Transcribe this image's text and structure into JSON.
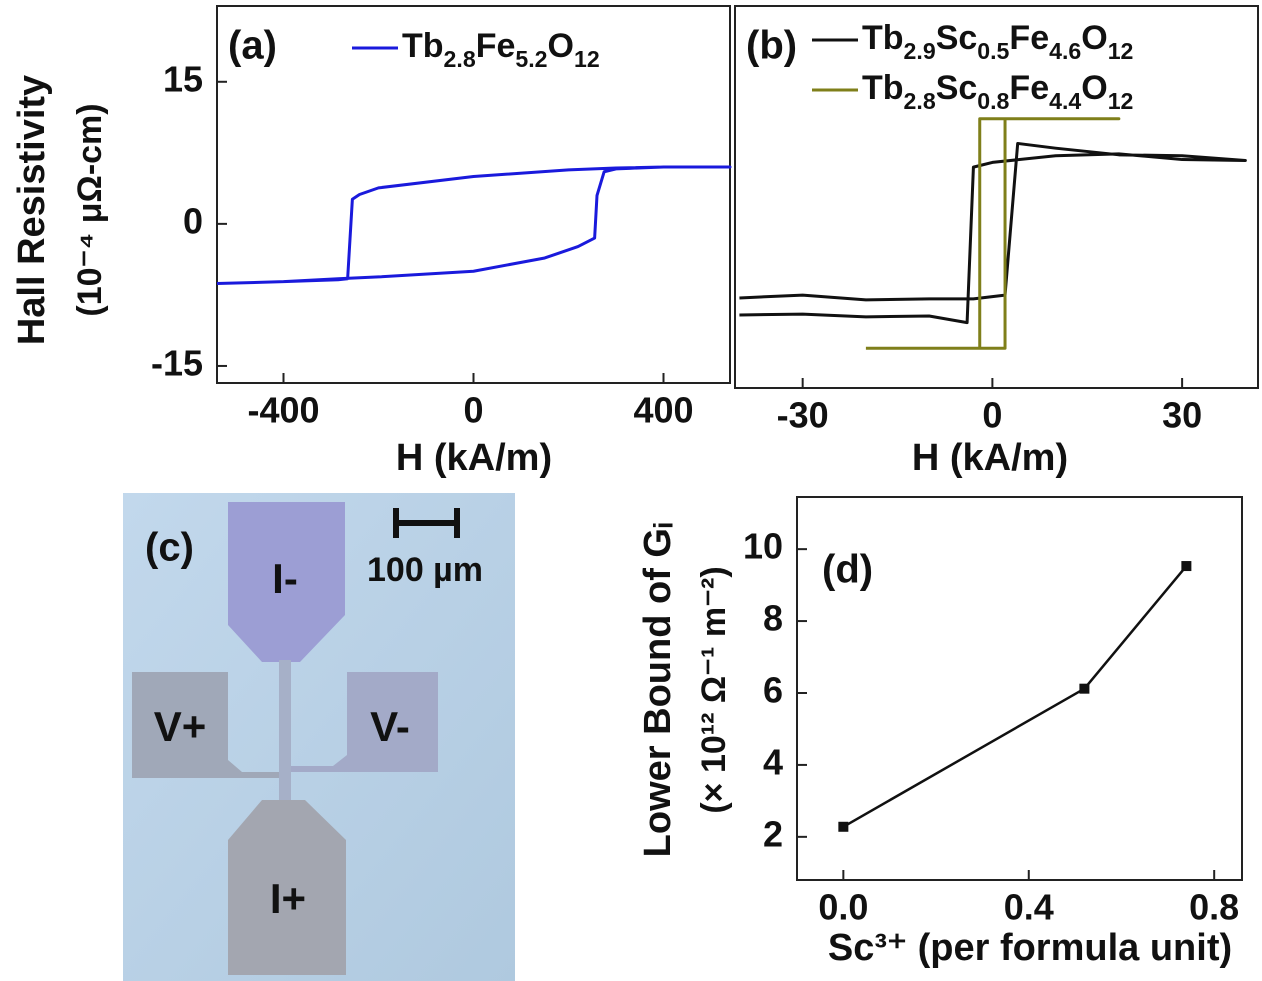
{
  "chart_data": [
    {
      "type": "line",
      "panel_label": "(a)",
      "xlabel": "H (kA/m)",
      "ylabel": "Hall Resistivity",
      "ylabel_unit": "(10⁻⁴ μΩ-cm)",
      "xlim": [
        -540,
        540
      ],
      "ylim": [
        -16.8,
        23
      ],
      "xticks": [
        -400,
        0,
        400
      ],
      "yticks": [
        -15,
        0,
        15
      ],
      "series": [
        {
          "name": "Tb2.8Fe5.2O12",
          "color": "#1a1adc",
          "x": [
            -540,
            -400,
            -285,
            -200,
            0,
            150,
            220,
            255,
            260,
            275,
            300,
            400,
            540,
            400,
            300,
            200,
            0,
            -200,
            -240,
            -255,
            -265,
            -285,
            -400,
            -540
          ],
          "values": [
            -6.3,
            -6.1,
            -5.8,
            -5.6,
            -5,
            -3.6,
            -2.4,
            -1.5,
            3,
            5.5,
            5.8,
            6,
            6,
            6,
            5.9,
            5.7,
            5,
            3.8,
            3.1,
            2.6,
            -5.8,
            -5.9,
            -6.1,
            -6.3
          ]
        }
      ]
    },
    {
      "type": "line",
      "panel_label": "(b)",
      "xlabel": "H (kA/m)",
      "xlim": [
        -40.7,
        42
      ],
      "ylim": [
        -17.3,
        23
      ],
      "xticks": [
        -30,
        0,
        30
      ],
      "series": [
        {
          "name": "Tb2.9Sc0.5Fe4.6O12",
          "color": "#111111",
          "x": [
            -40,
            -30,
            -20,
            -10,
            -3,
            2,
            4,
            10,
            20,
            30,
            40,
            30,
            20,
            10,
            0,
            -3,
            -4,
            -10,
            -20,
            -30,
            -40
          ],
          "values": [
            -7.8,
            -7.5,
            -8,
            -7.9,
            -7.9,
            -7.5,
            8.5,
            8,
            7.3,
            7.2,
            6.7,
            6.8,
            7.4,
            7.2,
            6.5,
            6,
            -10.4,
            -9.7,
            -9.8,
            -9.5,
            -9.6
          ]
        },
        {
          "name": "Tb2.8Sc0.8Fe4.4O12",
          "color": "#7f7f1a",
          "x": [
            -20,
            2,
            2,
            20,
            -2,
            -2,
            -20
          ],
          "values": [
            -13.1,
            -13.1,
            11.1,
            11.1,
            11.1,
            -13.1,
            -13.1
          ]
        }
      ]
    },
    {
      "type": "line",
      "panel_label": "(d)",
      "xlabel": "Sc³⁺ (per formula unit)",
      "ylabel": "Lower Bound of Gᵢ",
      "ylabel_unit": "(× 10¹² Ω⁻¹ m⁻²)",
      "xlim": [
        -0.1,
        0.86
      ],
      "ylim": [
        0.8,
        11.45
      ],
      "xticks": [
        {
          "value": 0,
          "label": "0.0"
        },
        {
          "value": 0.4,
          "label": "0.4"
        },
        {
          "value": 0.8,
          "label": "0.8"
        }
      ],
      "yticks": [
        2,
        4,
        6,
        8,
        10
      ],
      "series": [
        {
          "color": "#111111",
          "x": [
            0,
            0.52,
            0.74
          ],
          "values": [
            2.28,
            6.12,
            9.53
          ]
        }
      ]
    }
  ],
  "micrograph": {
    "panel_label": "(c)",
    "scale_bar": "100 µm",
    "pads": [
      "I-",
      "V+",
      "V-",
      "I+"
    ]
  }
}
